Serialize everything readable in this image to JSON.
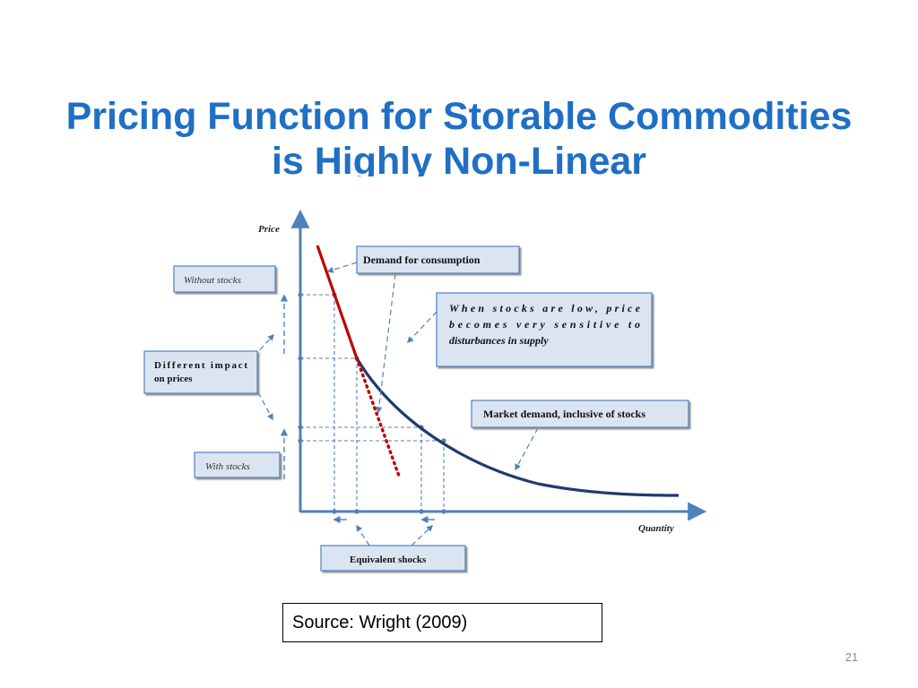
{
  "slide": {
    "title_line1": "Pricing Function for Storable Commodities",
    "title_line2": "is Highly Non-Linear",
    "source": "Source: Wright (2009)",
    "page_number": "21"
  },
  "diagram": {
    "axis_y_label": "Price",
    "axis_x_label": "Quantity",
    "callouts": {
      "demand_consumption": "Demand for consumption",
      "stocks_low_line1": "When   stocks   are   low,   price",
      "stocks_low_line2": "becomes     very     sensitive     to",
      "stocks_low_line3": "disturbances in supply",
      "market_demand": "Market demand, inclusive of stocks",
      "without_stocks": "Without stocks",
      "different_impact_line1": "Different      impact",
      "different_impact_line2": "on prices",
      "with_stocks": "With stocks",
      "equivalent_shocks": "Equivalent shocks"
    },
    "colors": {
      "axis": "#4f81bd",
      "demand_consumption_curve": "#c00000",
      "market_demand_curve": "#1f3c6e",
      "title": "#1f6fc5"
    }
  }
}
